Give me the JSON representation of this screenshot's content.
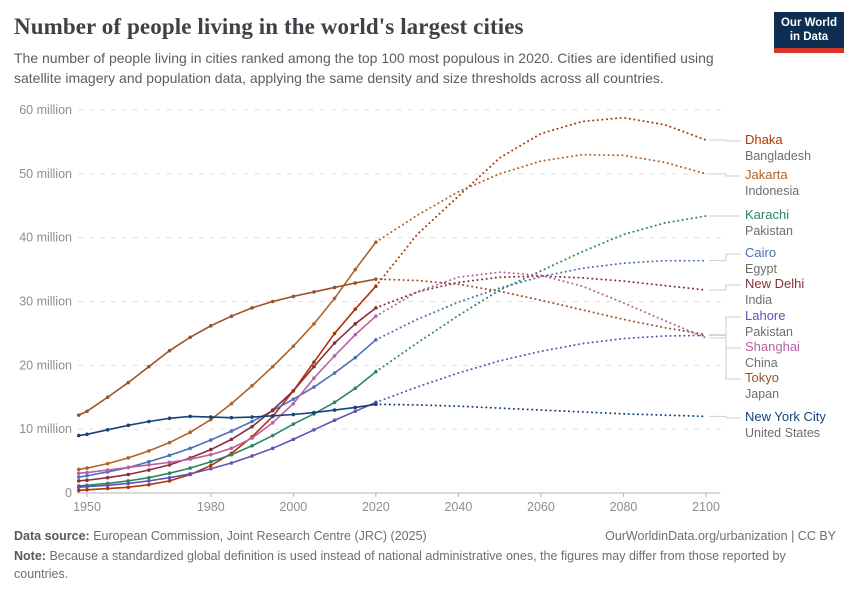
{
  "header": {
    "title": "Number of people living in the world's largest cities",
    "subtitle": "The number of people living in cities ranked among the top 100 most populous in 2020. Cities are identified using satellite imagery and population data, applying the same density and size thresholds across all countries.",
    "logo": {
      "line1": "Our World",
      "line2": "in Data",
      "bg_color": "#0d2d52",
      "bar_color": "#d8352a"
    }
  },
  "chart_data": {
    "type": "line",
    "title": "Number of people living in the world's largest cities",
    "xlabel": "",
    "ylabel": "",
    "grid": true,
    "legend_position": "right",
    "projection_start": 2020,
    "x_range": [
      1947.5,
      2103.5
    ],
    "y_range": [
      0,
      62
    ],
    "x_ticks": [
      1950,
      1980,
      2000,
      2020,
      2040,
      2060,
      2080,
      2100
    ],
    "y_ticks": [
      {
        "value": 0,
        "label": "0"
      },
      {
        "value": 10,
        "label": "10 million"
      },
      {
        "value": 20,
        "label": "20 million"
      },
      {
        "value": 30,
        "label": "30 million"
      },
      {
        "value": 40,
        "label": "40 million"
      },
      {
        "value": 50,
        "label": "50 million"
      },
      {
        "value": 60,
        "label": "60 million"
      }
    ],
    "unit": "million people",
    "years_hist": [
      1948,
      1950,
      1955,
      1960,
      1965,
      1970,
      1975,
      1980,
      1985,
      1990,
      1995,
      2000,
      2005,
      2010,
      2015,
      2020
    ],
    "years_proj": [
      2020,
      2030,
      2040,
      2050,
      2060,
      2070,
      2080,
      2090,
      2100
    ],
    "series": [
      {
        "name": "Dhaka",
        "country": "Bangladesh",
        "color": "#b13507",
        "hist": [
          0.4,
          0.5,
          0.7,
          0.9,
          1.3,
          1.9,
          2.9,
          4.3,
          6.2,
          8.8,
          12.0,
          16.0,
          20.5,
          25.0,
          28.8,
          32.4
        ],
        "proj": [
          32.4,
          40.5,
          46.5,
          52.5,
          56.3,
          58.2,
          58.8,
          57.7,
          55.3
        ]
      },
      {
        "name": "Jakarta",
        "country": "Indonesia",
        "color": "#ae6429",
        "hist": [
          3.7,
          3.9,
          4.6,
          5.5,
          6.6,
          7.9,
          9.5,
          11.5,
          14.0,
          16.8,
          19.8,
          23.0,
          26.5,
          30.5,
          35.0,
          39.3
        ],
        "proj": [
          39.3,
          43.5,
          47.2,
          50.0,
          52.0,
          53.0,
          52.9,
          51.8,
          50.0
        ]
      },
      {
        "name": "Karachi",
        "country": "Pakistan",
        "color": "#2c8465",
        "hist": [
          1.1,
          1.2,
          1.5,
          1.9,
          2.4,
          3.1,
          3.9,
          4.9,
          6.0,
          7.4,
          9.0,
          10.8,
          12.4,
          14.2,
          16.4,
          19.0
        ],
        "proj": [
          19.0,
          23.5,
          27.8,
          31.8,
          34.8,
          37.8,
          40.5,
          42.3,
          43.4
        ]
      },
      {
        "name": "Cairo",
        "country": "Egypt",
        "color": "#4c6fb8",
        "hist": [
          2.5,
          2.7,
          3.3,
          4.0,
          4.9,
          5.9,
          7.0,
          8.3,
          9.7,
          11.2,
          12.9,
          14.7,
          16.6,
          18.8,
          21.2,
          24.0
        ],
        "proj": [
          24.0,
          27.2,
          29.9,
          32.1,
          33.9,
          35.2,
          36.0,
          36.4,
          36.4
        ]
      },
      {
        "name": "New Delhi",
        "country": "India",
        "color": "#883039",
        "hist": [
          1.9,
          2.0,
          2.4,
          2.9,
          3.6,
          4.4,
          5.5,
          6.8,
          8.4,
          10.4,
          13.0,
          16.0,
          19.8,
          23.5,
          26.5,
          29.0
        ],
        "proj": [
          29.0,
          31.5,
          33.0,
          33.8,
          34.0,
          33.7,
          33.2,
          32.5,
          31.8
        ]
      },
      {
        "name": "Lahore",
        "country": "Pakistan",
        "color": "#6152b5",
        "hist": [
          0.9,
          1.0,
          1.2,
          1.5,
          1.9,
          2.4,
          3.0,
          3.8,
          4.7,
          5.8,
          7.0,
          8.4,
          9.9,
          11.4,
          12.8,
          14.2
        ],
        "proj": [
          14.2,
          16.6,
          18.8,
          20.7,
          22.2,
          23.4,
          24.2,
          24.6,
          24.7
        ]
      },
      {
        "name": "Shanghai",
        "country": "China",
        "color": "#bc5fa4",
        "hist": [
          3.1,
          3.2,
          3.6,
          4.0,
          4.4,
          4.8,
          5.3,
          6.0,
          7.0,
          8.6,
          11.0,
          14.0,
          18.0,
          21.5,
          24.8,
          27.7
        ],
        "proj": [
          27.7,
          31.5,
          33.8,
          34.6,
          34.1,
          32.4,
          29.8,
          27.0,
          24.3
        ]
      },
      {
        "name": "Tokyo",
        "country": "Japan",
        "color": "#9a5129",
        "hist": [
          12.2,
          12.8,
          15.0,
          17.3,
          19.8,
          22.3,
          24.4,
          26.2,
          27.7,
          29.0,
          30.0,
          30.8,
          31.5,
          32.2,
          32.9,
          33.5
        ],
        "proj": [
          33.5,
          33.3,
          32.7,
          31.6,
          30.2,
          28.7,
          27.2,
          25.9,
          24.8
        ]
      },
      {
        "name": "New York City",
        "country": "United States",
        "color": "#14427a",
        "hist": [
          9.0,
          9.2,
          9.9,
          10.6,
          11.2,
          11.7,
          12.0,
          11.9,
          11.8,
          11.9,
          12.1,
          12.3,
          12.6,
          13.0,
          13.4,
          13.9
        ],
        "proj": [
          13.9,
          13.8,
          13.6,
          13.3,
          13.0,
          12.7,
          12.4,
          12.2,
          12.0
        ]
      }
    ]
  },
  "footer": {
    "source_label": "Data source:",
    "source_text": "European Commission, Joint Research Centre (JRC) (2025)",
    "right_text": "OurWorldinData.org/urbanization | CC BY",
    "note_label": "Note:",
    "note_text": "Because a standardized global definition is used instead of national administrative ones, the figures may differ from those reported by countries."
  }
}
